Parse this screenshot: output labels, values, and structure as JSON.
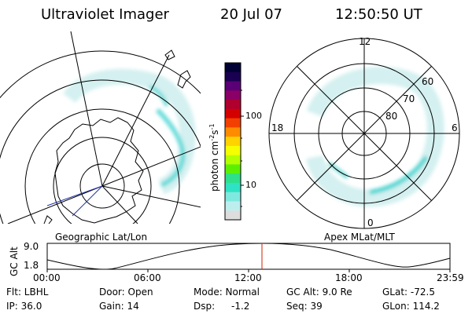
{
  "header": {
    "title": "Ultraviolet Imager",
    "date": "20 Jul 07",
    "time": "12:50:50 UT"
  },
  "left_map": {
    "label": "Geographic Lat/Lon"
  },
  "right_map": {
    "label": "Apex MLat/MLT",
    "mlt_labels": [
      "12",
      "18",
      "6",
      "0"
    ],
    "lat_labels": [
      "60",
      "70",
      "80"
    ]
  },
  "colorbar": {
    "unit_label": "photon cm",
    "unit_exp1": "-2",
    "unit_mid": "s",
    "unit_exp2": "-1",
    "ticks": [
      "100",
      "10"
    ],
    "colors": [
      "#000033",
      "#1a0050",
      "#5a0077",
      "#8b0066",
      "#b0002e",
      "#d40000",
      "#f24000",
      "#ff8c00",
      "#ffd200",
      "#f4ff00",
      "#b4ff00",
      "#5cf000",
      "#2ee08a",
      "#2fe2c4",
      "#7fe9e0",
      "#bdeeee",
      "#dddddd"
    ]
  },
  "altitude_plot": {
    "ylabel": "GC Alt",
    "y_ticks": [
      "9.0",
      "1.8"
    ],
    "x_ticks": [
      "00:00",
      "06:00",
      "12:00",
      "18:00",
      "23:59"
    ],
    "current_marker_color": "#cc2200"
  },
  "info": {
    "flt": "Flt: LBHL",
    "door": "Door: Open",
    "mode": "Mode: Normal",
    "gc_alt": "GC Alt: 9.0 Re",
    "glat": "GLat: -72.5",
    "ip": "IP: 36.0",
    "gain": "Gain: 14",
    "dsp_label": "Dsp:",
    "dsp_value": "-1.2",
    "seq": "Seq: 39",
    "glon": "GLon: 114.2"
  }
}
